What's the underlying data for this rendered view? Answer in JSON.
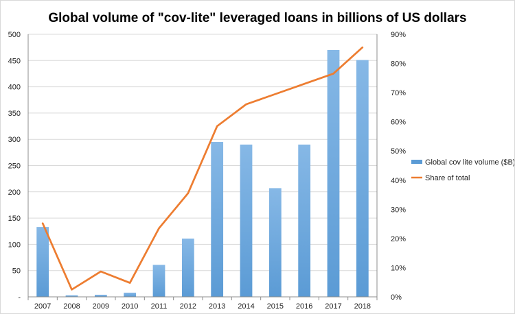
{
  "chart_data": {
    "type": "bar+line",
    "title": "Global volume of \"cov-lite\" leveraged loans in billions of US dollars",
    "categories": [
      "2007",
      "2008",
      "2009",
      "2010",
      "2011",
      "2012",
      "2013",
      "2014",
      "2015",
      "2016",
      "2017",
      "2018"
    ],
    "series": [
      {
        "name": "Global cov lite volume ($B)",
        "type": "bar",
        "axis": "left",
        "color": "#5b9bd5",
        "values": [
          133,
          3,
          4,
          8,
          61,
          111,
          295,
          290,
          207,
          290,
          470,
          451
        ]
      },
      {
        "name": "Share of total",
        "type": "line",
        "axis": "right",
        "color": "#ed7d31",
        "values": [
          25.2,
          2.5,
          8.7,
          4.8,
          23.5,
          35.5,
          58.5,
          66,
          69.5,
          73,
          76.5,
          85.5
        ]
      }
    ],
    "left_axis": {
      "min": 0,
      "max": 500,
      "step": 50,
      "ticks": [
        "-",
        "50",
        "100",
        "150",
        "200",
        "250",
        "300",
        "350",
        "400",
        "450",
        "500"
      ]
    },
    "right_axis": {
      "min": 0,
      "max": 90,
      "step": 10,
      "ticks": [
        "0%",
        "10%",
        "20%",
        "30%",
        "40%",
        "50%",
        "60%",
        "70%",
        "80%",
        "90%"
      ]
    },
    "grid": true,
    "legend_position": "right"
  }
}
